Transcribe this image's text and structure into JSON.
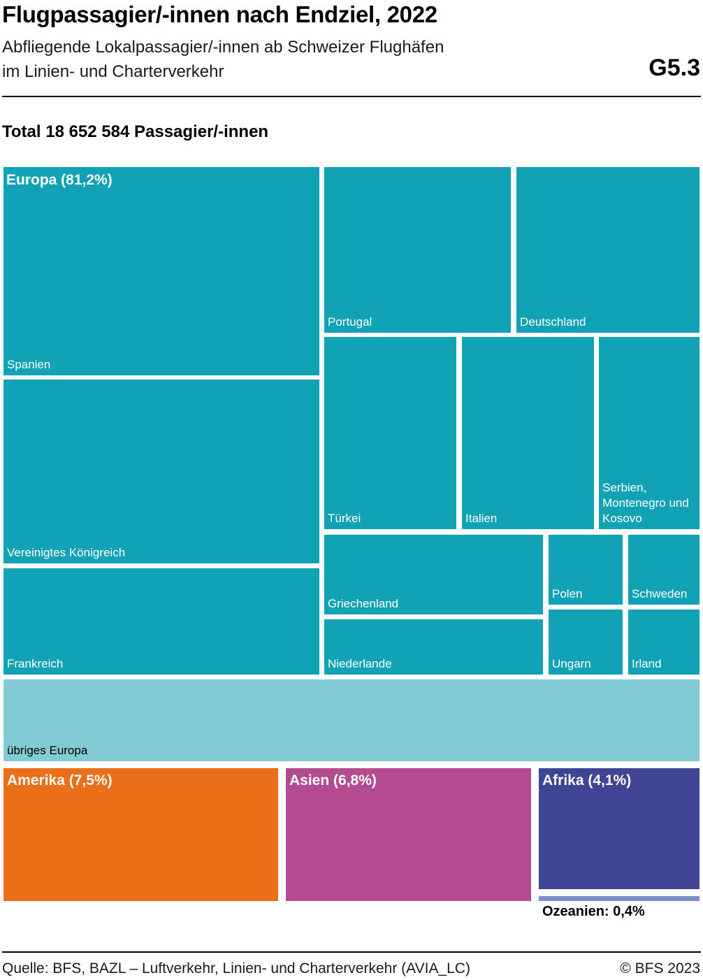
{
  "header": {
    "title": "Flugpassagier/-innen nach Endziel, 2022",
    "subtitle_line1": "Abfliegende Lokalpassagier/-innen ab Schweizer Flughäfen",
    "subtitle_line2": "im Linien- und Charterverkehr",
    "chart_id": "G5.3"
  },
  "total_label": "Total 18 652 584 Passagier/-innen",
  "footer": {
    "source": "Quelle: BFS, BAZL – Luftverkehr, Linien- und Charterverkehr (AVIA_LC)",
    "copyright": "© BFS 2023"
  },
  "colors": {
    "europe": "#12a2b5",
    "europe_other": "#82cbd4",
    "america": "#eb6e19",
    "asia": "#b44a8f",
    "africa": "#3f4494",
    "oceania": "#7b90c9"
  },
  "chart_data": {
    "type": "treemap",
    "total_passengers": 18652584,
    "groups": [
      {
        "name": "Europa",
        "label": "Europa (81,2%)",
        "share_percent": 81.2,
        "children": [
          {
            "name": "Spanien"
          },
          {
            "name": "Vereinigtes Königreich"
          },
          {
            "name": "Frankreich"
          },
          {
            "name": "Portugal"
          },
          {
            "name": "Deutschland"
          },
          {
            "name": "Türkei"
          },
          {
            "name": "Italien"
          },
          {
            "name": "Serbien, Montenegro und Kosovo"
          },
          {
            "name": "Griechenland"
          },
          {
            "name": "Niederlande"
          },
          {
            "name": "Polen"
          },
          {
            "name": "Schweden"
          },
          {
            "name": "Ungarn"
          },
          {
            "name": "Irland"
          },
          {
            "name": "übriges Europa"
          }
        ]
      },
      {
        "name": "Amerika",
        "label": "Amerika (7,5%)",
        "share_percent": 7.5
      },
      {
        "name": "Asien",
        "label": "Asien (6,8%)",
        "share_percent": 6.8
      },
      {
        "name": "Afrika",
        "label": "Afrika (4,1%)",
        "share_percent": 4.1
      },
      {
        "name": "Ozeanien",
        "label": "Ozeanien: 0,4%",
        "share_percent": 0.4
      }
    ]
  }
}
